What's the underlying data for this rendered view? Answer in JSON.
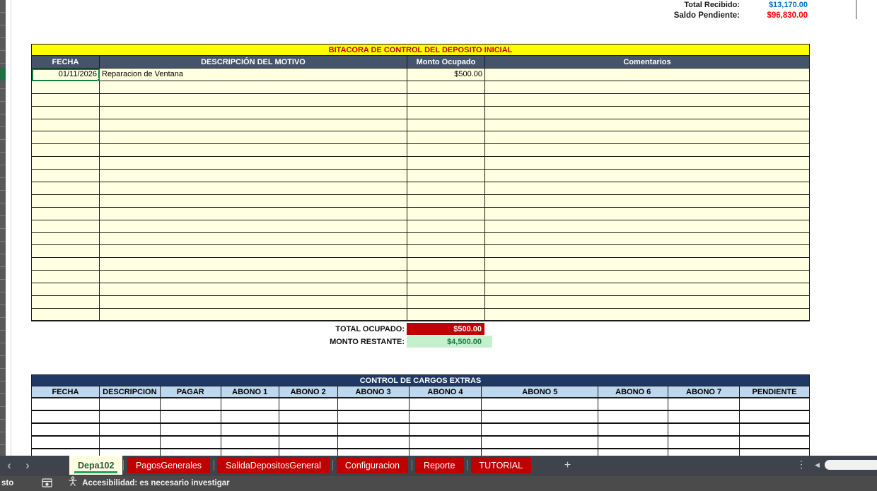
{
  "summary": {
    "total_recibido_label": "Total Recibido:",
    "total_recibido_value": "$13,170.00",
    "saldo_pendiente_label": "Saldo Pendiente:",
    "saldo_pendiente_value": "$96,830.00"
  },
  "bitacora": {
    "title": "BITACORA DE CONTROL DEL DEPOSITO INICIAL",
    "columns": [
      "FECHA",
      "DESCRIPCIÓN DEL MOTIVO",
      "Monto Ocupado",
      "Comentarios"
    ],
    "rows": [
      {
        "fecha": "01/11/2026",
        "descripcion": "Reparacion de Ventana",
        "monto": "$500.00",
        "comentarios": ""
      }
    ],
    "empty_rows": 19,
    "total_label": "TOTAL OCUPADO:",
    "total_value": "$500.00",
    "restante_label": "MONTO RESTANTE:",
    "restante_value": "$4,500.00"
  },
  "cargos": {
    "title": "CONTROL DE CARGOS EXTRAS",
    "columns": [
      "FECHA",
      "DESCRIPCION",
      "PAGAR",
      "ABONO 1",
      "ABONO 2",
      "ABONO 3",
      "ABONO 4",
      "ABONO 5",
      "ABONO 6",
      "ABONO 7",
      "PENDIENTE"
    ],
    "empty_rows": 5
  },
  "sheet_tabs": {
    "active": "Depa102",
    "others": [
      "PagosGenerales",
      "SalidaDepositosGeneral",
      "Configuracion",
      "Reporte",
      "TUTORIAL"
    ],
    "add_label": "+"
  },
  "status_bar": {
    "left_text": "sto",
    "accessibility_text": "Accesibilidad: es necesario investigar"
  },
  "colors": {
    "title_yellow": "#FFFF00",
    "title_red_text": "#C00000",
    "header_slate": "#44546A",
    "navy": "#1F3864",
    "light_blue_header": "#BDD7EE",
    "pale_yellow_cell": "#FFFFE1",
    "total_red": "#C00000",
    "restante_green_bg": "#C6EFCE",
    "restante_green_text": "#107C41",
    "value_blue": "#0070C0",
    "value_red": "#FF0000",
    "selection_green": "#107C41",
    "tab_red": "#C00000",
    "tab_active_bg": "#FFFFE1",
    "tab_underline": "#21A366"
  }
}
